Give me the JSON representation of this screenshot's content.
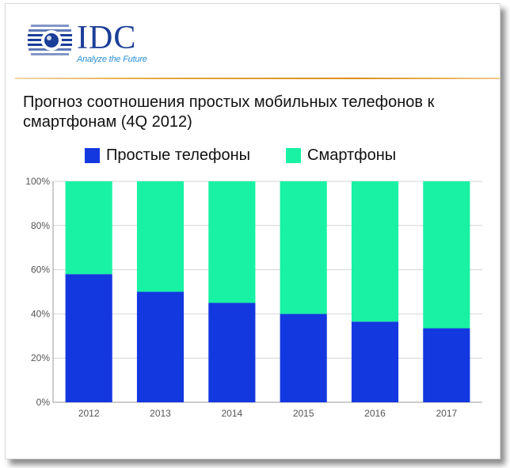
{
  "logo": {
    "brand": "IDC",
    "tagline": "Analyze the Future"
  },
  "chart_data": {
    "type": "bar",
    "stacked": true,
    "title": "Прогноз соотношения простых мобильных телефонов к смартфонам (4Q 2012)",
    "categories": [
      "2012",
      "2013",
      "2014",
      "2015",
      "2016",
      "2017"
    ],
    "series": [
      {
        "name": "Простые телефоны",
        "color": "#1438e0",
        "values": [
          58,
          50,
          45,
          40,
          36.5,
          33.5
        ]
      },
      {
        "name": "Смартфоны",
        "color": "#19f2a4",
        "values": [
          42,
          50,
          55,
          60,
          63.5,
          66.5
        ]
      }
    ],
    "y_ticks": [
      "0%",
      "20%",
      "40%",
      "60%",
      "80%",
      "100%"
    ],
    "ylim": [
      0,
      100
    ],
    "grid": true,
    "legend": "top"
  }
}
